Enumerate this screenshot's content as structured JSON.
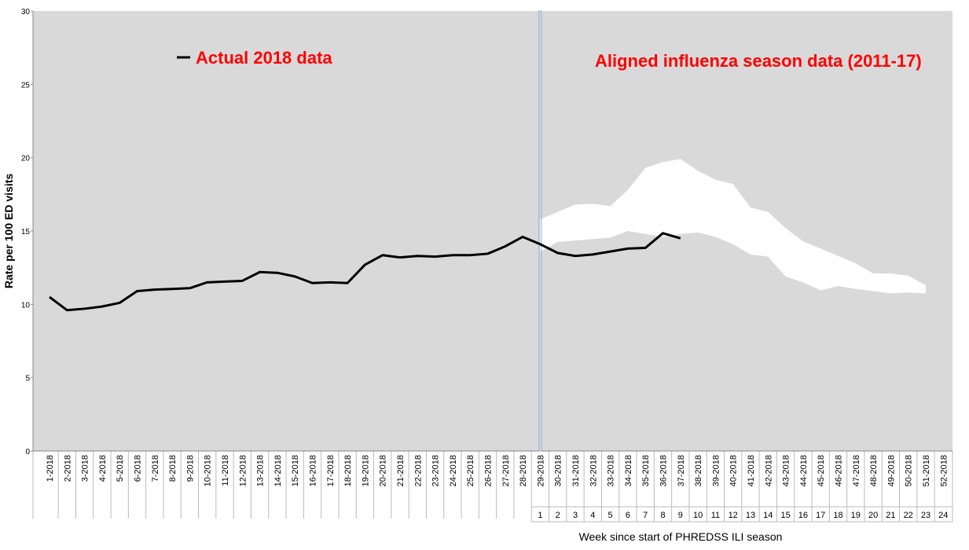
{
  "chart_data": {
    "type": "line",
    "y_label": "Rate per 100 ED visits",
    "x_label": "Week since start of PHREDSS ILI season",
    "categories": [
      "1-2018",
      "2-2018",
      "3-2018",
      "4-2018",
      "5-2018",
      "6-2018",
      "7-2018",
      "8-2018",
      "9-2018",
      "10-2018",
      "11-2018",
      "12-2018",
      "13-2018",
      "14-2018",
      "15-2018",
      "16-2018",
      "17-2018",
      "18-2018",
      "19-2018",
      "20-2018",
      "21-2018",
      "22-2018",
      "23-2018",
      "24-2018",
      "25-2018",
      "26-2018",
      "27-2018",
      "28-2018",
      "29-2018",
      "30-2018",
      "31-2018",
      "32-2018",
      "33-2018",
      "34-2018",
      "35-2018",
      "36-2018",
      "37-2018",
      "38-2018",
      "39-2018",
      "40-2018",
      "41-2018",
      "42-2018",
      "43-2018",
      "44-2018",
      "45-2018",
      "46-2018",
      "47-2018",
      "48-2018",
      "49-2018",
      "50-2018",
      "51-2018",
      "52-2018"
    ],
    "season_weeks": [
      null,
      null,
      null,
      null,
      null,
      null,
      null,
      null,
      null,
      null,
      null,
      null,
      null,
      null,
      null,
      null,
      null,
      null,
      null,
      null,
      null,
      null,
      null,
      null,
      null,
      null,
      null,
      null,
      1,
      2,
      3,
      4,
      5,
      6,
      7,
      8,
      9,
      10,
      11,
      12,
      13,
      14,
      15,
      16,
      17,
      18,
      19,
      20,
      21,
      22,
      23,
      24
    ],
    "series": [
      {
        "name": "Actual 2018 data",
        "color": "#000000",
        "label_color": "#ff0000",
        "values": [
          10.5,
          9.6,
          9.7,
          9.85,
          10.1,
          10.9,
          11.0,
          11.05,
          11.1,
          11.5,
          11.55,
          11.6,
          12.2,
          12.15,
          11.9,
          11.45,
          11.5,
          11.45,
          12.7,
          13.35,
          13.2,
          13.3,
          13.25,
          13.35,
          13.35,
          13.45,
          13.95,
          14.6,
          14.1,
          13.5,
          13.3,
          13.4,
          13.6,
          13.8,
          13.85,
          14.85,
          14.5,
          null,
          null,
          null,
          null,
          null,
          null,
          null,
          null,
          null,
          null,
          null,
          null,
          null,
          null,
          null
        ]
      },
      {
        "name": "Aligned influenza season data (2011-17)",
        "color": "#ffffff",
        "label_color": "#ff0000",
        "upper": [
          null,
          null,
          null,
          null,
          null,
          null,
          null,
          null,
          null,
          null,
          null,
          null,
          null,
          null,
          null,
          null,
          null,
          null,
          null,
          null,
          null,
          null,
          null,
          null,
          null,
          null,
          null,
          null,
          15.8,
          16.3,
          16.8,
          16.85,
          16.7,
          17.8,
          19.3,
          19.7,
          19.9,
          19.1,
          18.5,
          18.2,
          16.6,
          16.3,
          15.2,
          14.3,
          13.8,
          13.3,
          12.8,
          12.1,
          12.1,
          11.95,
          11.3,
          null
        ],
        "lower": [
          null,
          null,
          null,
          null,
          null,
          null,
          null,
          null,
          null,
          null,
          null,
          null,
          null,
          null,
          null,
          null,
          null,
          null,
          null,
          null,
          null,
          null,
          null,
          null,
          null,
          null,
          null,
          null,
          13.6,
          14.25,
          14.35,
          14.45,
          14.55,
          15.0,
          14.8,
          14.6,
          14.8,
          14.9,
          14.6,
          14.1,
          13.4,
          13.25,
          11.9,
          11.5,
          10.95,
          11.25,
          11.05,
          10.9,
          10.75,
          10.8,
          10.75,
          null
        ]
      }
    ],
    "ylim": [
      0,
      30
    ],
    "yticks": [
      0,
      5,
      10,
      15,
      20,
      25,
      30
    ],
    "plot_background": "#d9d9d9"
  }
}
